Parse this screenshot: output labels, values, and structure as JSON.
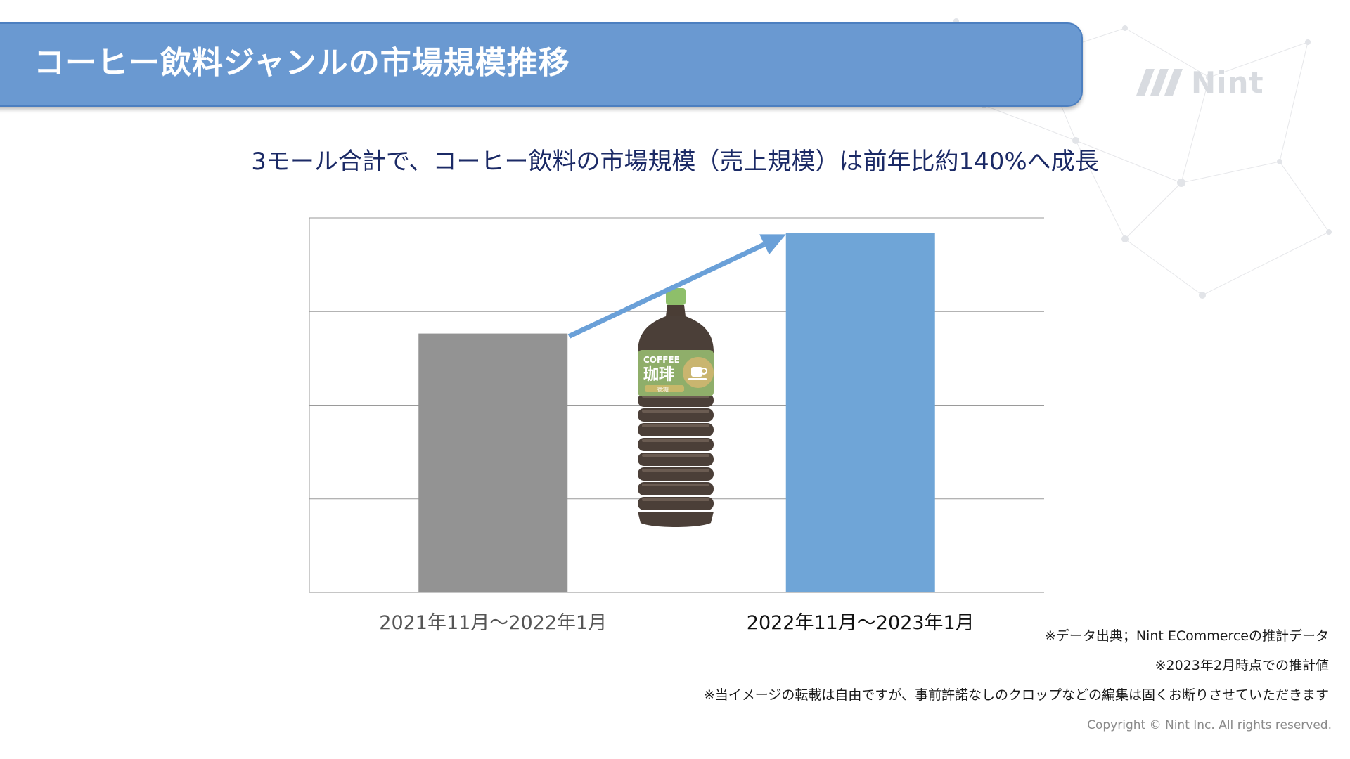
{
  "header": {
    "title": "コーヒー飲料ジャンルの市場規模推移"
  },
  "brand": {
    "name": "Nint",
    "logo_icon": "nint-logo-icon"
  },
  "subtitle": "3モール合計で、コーヒー飲料の市場規模（売上規模）は前年比約140%へ成長",
  "chart_data": {
    "type": "bar",
    "categories": [
      "2021年11月〜2022年1月",
      "2022年11月〜2023年1月"
    ],
    "series": [
      {
        "values": [
          72,
          100
        ]
      }
    ],
    "bar_colors": [
      "#939393",
      "#6fa5d7"
    ],
    "ylim": [
      0,
      100
    ],
    "gridlines": 4,
    "grid": true,
    "growth_arrow": {
      "color": "#6aa0d8",
      "from": 0,
      "to": 1
    },
    "illustration": "coffee-bottle-icon",
    "bottle_label": {
      "line1": "COFFEE",
      "line2": "珈琲",
      "line3": "微糖"
    }
  },
  "notes": {
    "source": "※データ出典；Nint ECommerceの推計データ",
    "as_of": "※2023年2月時点での推計値",
    "usage": "※当イメージの転載は自由ですが、事前許諾なしのクロップなどの編集は固くお断りさせていただきます"
  },
  "footer": {
    "copyright": "Copyright © Nint Inc. All rights reserved."
  },
  "colors": {
    "header_bg": "#6a99d1",
    "subtitle_text": "#1b2a66",
    "bar_prev": "#939393",
    "bar_curr": "#6fa5d7"
  }
}
